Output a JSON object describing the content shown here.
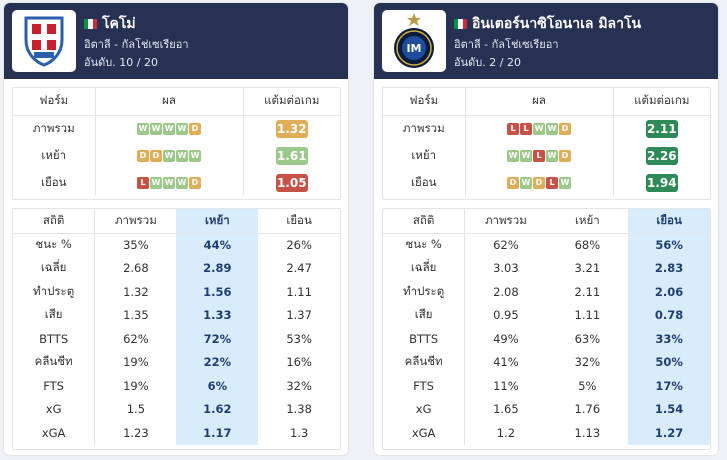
{
  "teams": [
    {
      "name": "โคโม่",
      "league": "อิตาลี - กัลโช่เซเรียอา",
      "rank": "อันดับ. 10 / 20",
      "logo_icon": "como-crest-icon",
      "highlight_column": 1,
      "form_headers": [
        "ฟอร์ม",
        "ผล",
        "แต้มต่อเกม"
      ],
      "form_rows": [
        {
          "label": "ภาพรวม",
          "results": [
            "W",
            "W",
            "W",
            "W",
            "D"
          ],
          "ppg": "1.32",
          "ppg_color": "#e0ad58"
        },
        {
          "label": "เหย้า",
          "results": [
            "D",
            "D",
            "W",
            "W",
            "W"
          ],
          "ppg": "1.61",
          "ppg_color": "#9cc98a"
        },
        {
          "label": "เยือน",
          "results": [
            "L",
            "W",
            "W",
            "W",
            "D"
          ],
          "ppg": "1.05",
          "ppg_color": "#c65247"
        }
      ],
      "stat_headers": [
        "สถิติ",
        "ภาพรวม",
        "เหย้า",
        "เยือน"
      ],
      "stat_rows": [
        [
          "ชนะ %",
          "35%",
          "44%",
          "26%"
        ],
        [
          "เฉลี่ย",
          "2.68",
          "2.89",
          "2.47"
        ],
        [
          "ทำประตู",
          "1.32",
          "1.56",
          "1.11"
        ],
        [
          "เสีย",
          "1.35",
          "1.33",
          "1.37"
        ],
        [
          "BTTS",
          "62%",
          "72%",
          "53%"
        ],
        [
          "คลีนชีท",
          "19%",
          "22%",
          "16%"
        ],
        [
          "FTS",
          "19%",
          "6%",
          "32%"
        ],
        [
          "xG",
          "1.5",
          "1.62",
          "1.38"
        ],
        [
          "xGA",
          "1.23",
          "1.17",
          "1.3"
        ]
      ]
    },
    {
      "name": "อินเตอร์นาซิโอนาเล มิลาโน",
      "league": "อิตาลี - กัลโช่เซเรียอา",
      "rank": "อันดับ. 2 / 20",
      "logo_icon": "inter-crest-icon",
      "highlight_column": 2,
      "form_headers": [
        "ฟอร์ม",
        "ผล",
        "แต้มต่อเกม"
      ],
      "form_rows": [
        {
          "label": "ภาพรวม",
          "results": [
            "L",
            "L",
            "W",
            "W",
            "D"
          ],
          "ppg": "2.11",
          "ppg_color": "#2e8b57"
        },
        {
          "label": "เหย้า",
          "results": [
            "W",
            "W",
            "L",
            "W",
            "D"
          ],
          "ppg": "2.26",
          "ppg_color": "#2e8b57"
        },
        {
          "label": "เยือน",
          "results": [
            "D",
            "W",
            "D",
            "L",
            "W"
          ],
          "ppg": "1.94",
          "ppg_color": "#2e8b57"
        }
      ],
      "stat_headers": [
        "สถิติ",
        "ภาพรวม",
        "เหย้า",
        "เยือน"
      ],
      "stat_rows": [
        [
          "ชนะ %",
          "62%",
          "68%",
          "56%"
        ],
        [
          "เฉลี่ย",
          "3.03",
          "3.21",
          "2.83"
        ],
        [
          "ทำประตู",
          "2.08",
          "2.11",
          "2.06"
        ],
        [
          "เสีย",
          "0.95",
          "1.11",
          "0.78"
        ],
        [
          "BTTS",
          "49%",
          "63%",
          "33%"
        ],
        [
          "คลีนชีท",
          "41%",
          "32%",
          "50%"
        ],
        [
          "FTS",
          "11%",
          "5%",
          "17%"
        ],
        [
          "xG",
          "1.65",
          "1.76",
          "1.54"
        ],
        [
          "xGA",
          "1.2",
          "1.13",
          "1.27"
        ]
      ]
    }
  ]
}
